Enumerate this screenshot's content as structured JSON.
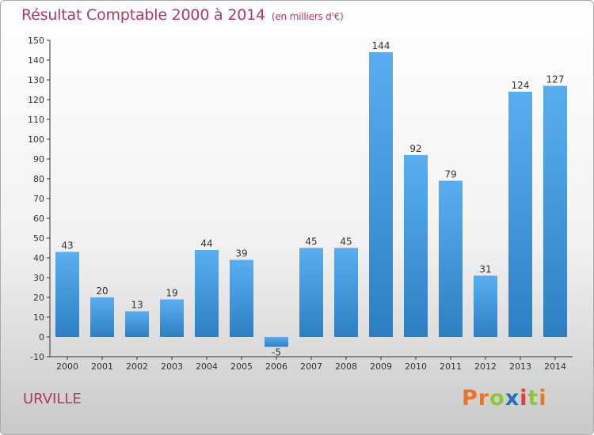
{
  "header": {
    "title": "Résultat Comptable 2000 à 2014",
    "subtitle": "(en milliers d'€)"
  },
  "footer": {
    "commune": "URVILLE",
    "brand": "Proxiti",
    "brand_colors": [
      "#e8762a",
      "#e8762a",
      "#8cc63f",
      "#1e73be",
      "#e83c3c",
      "#8cc63f",
      "#e8762a"
    ]
  },
  "colors": {
    "title": "#b03a5a",
    "bar_light": "#5aaef0",
    "bar_dark": "#2e7fc2",
    "axis": "#333333",
    "grid": "#d0d0d0"
  },
  "chart_data": {
    "type": "bar",
    "categories": [
      "2000",
      "2001",
      "2002",
      "2003",
      "2004",
      "2005",
      "2006",
      "2007",
      "2008",
      "2009",
      "2010",
      "2011",
      "2012",
      "2013",
      "2014"
    ],
    "values": [
      43,
      20,
      13,
      19,
      44,
      39,
      -5,
      45,
      45,
      144,
      92,
      79,
      31,
      124,
      127
    ],
    "data_labels": [
      "43",
      "20",
      "13",
      "19",
      "44",
      "39",
      "-5",
      "45",
      "45",
      "144",
      "92",
      "79",
      "31",
      "124",
      "127"
    ],
    "ylim": [
      -10,
      150
    ],
    "yticks": [
      -10,
      0,
      10,
      20,
      30,
      40,
      50,
      60,
      70,
      80,
      90,
      100,
      110,
      120,
      130,
      140,
      150
    ],
    "grid": false,
    "legend": "none"
  }
}
